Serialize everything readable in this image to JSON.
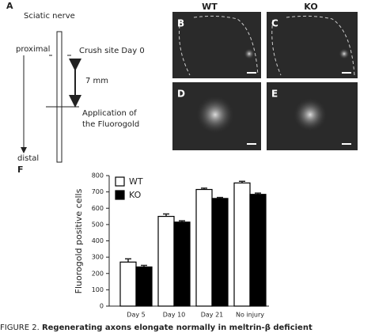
{
  "panel_a": {
    "label": "A",
    "title": "Sciatic nerve",
    "proximal": "proximal",
    "crush": "Crush site Day 0",
    "distance": "7 mm",
    "application": [
      "Application of",
      "the Fluorogold"
    ],
    "distal": "distal"
  },
  "micrographs": {
    "columns": [
      "WT",
      "KO"
    ],
    "panels": [
      "B",
      "C",
      "D",
      "E"
    ]
  },
  "panel_f_label": "F",
  "chart_data": {
    "type": "bar",
    "ylabel": "Fluorogold positive cells",
    "categories": [
      "Day 5",
      "Day 10",
      "Day 21",
      "No injury"
    ],
    "series": [
      {
        "name": "WT",
        "color": "#ffffff",
        "values": [
          270,
          550,
          715,
          755
        ],
        "errors": [
          20,
          15,
          8,
          10
        ]
      },
      {
        "name": "KO",
        "color": "#000000",
        "values": [
          240,
          515,
          660,
          685
        ],
        "errors": [
          10,
          8,
          6,
          8
        ]
      }
    ],
    "ylim": [
      0,
      800
    ],
    "yticks": [
      0,
      100,
      200,
      300,
      400,
      500,
      600,
      700,
      800
    ],
    "legend": "upper left"
  },
  "caption": {
    "label": "FIGURE 2.",
    "text": "Regenerating axons elongate normally in meltrin-β deficient"
  }
}
